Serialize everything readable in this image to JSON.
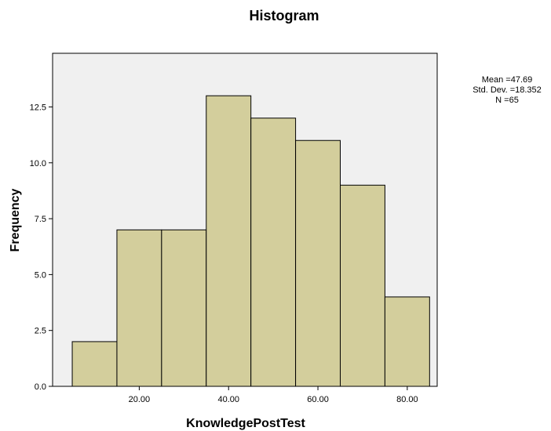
{
  "chart_data": {
    "type": "bar",
    "title": "Histogram",
    "xlabel": "KnowledgePostTest",
    "ylabel": "Frequency",
    "bins": [
      {
        "start": 5,
        "end": 15,
        "count": 2
      },
      {
        "start": 15,
        "end": 25,
        "count": 7
      },
      {
        "start": 25,
        "end": 35,
        "count": 7
      },
      {
        "start": 35,
        "end": 45,
        "count": 13
      },
      {
        "start": 45,
        "end": 55,
        "count": 12
      },
      {
        "start": 55,
        "end": 65,
        "count": 11
      },
      {
        "start": 65,
        "end": 75,
        "count": 9
      },
      {
        "start": 75,
        "end": 85,
        "count": 4
      }
    ],
    "xlim": [
      0.6,
      86.7
    ],
    "ylim": [
      0,
      14.9
    ],
    "x_ticks": [
      20,
      40,
      60,
      80
    ],
    "x_tick_labels": [
      "20.00",
      "40.00",
      "60.00",
      "80.00"
    ],
    "y_ticks": [
      0,
      2.5,
      5,
      7.5,
      10,
      12.5
    ],
    "y_tick_labels": [
      "0.0",
      "2.5",
      "5.0",
      "7.5",
      "10.0",
      "12.5"
    ],
    "grid": false,
    "colors": {
      "bar_fill": "#D3CE9C",
      "bar_stroke": "#000000",
      "plot_background": "#F0F0F0",
      "frame": "#000000"
    },
    "stats": {
      "mean": "Mean =47.69",
      "std_dev": "Std. Dev. =18.352",
      "n": "N =65"
    },
    "stats_placement": "top-right"
  }
}
